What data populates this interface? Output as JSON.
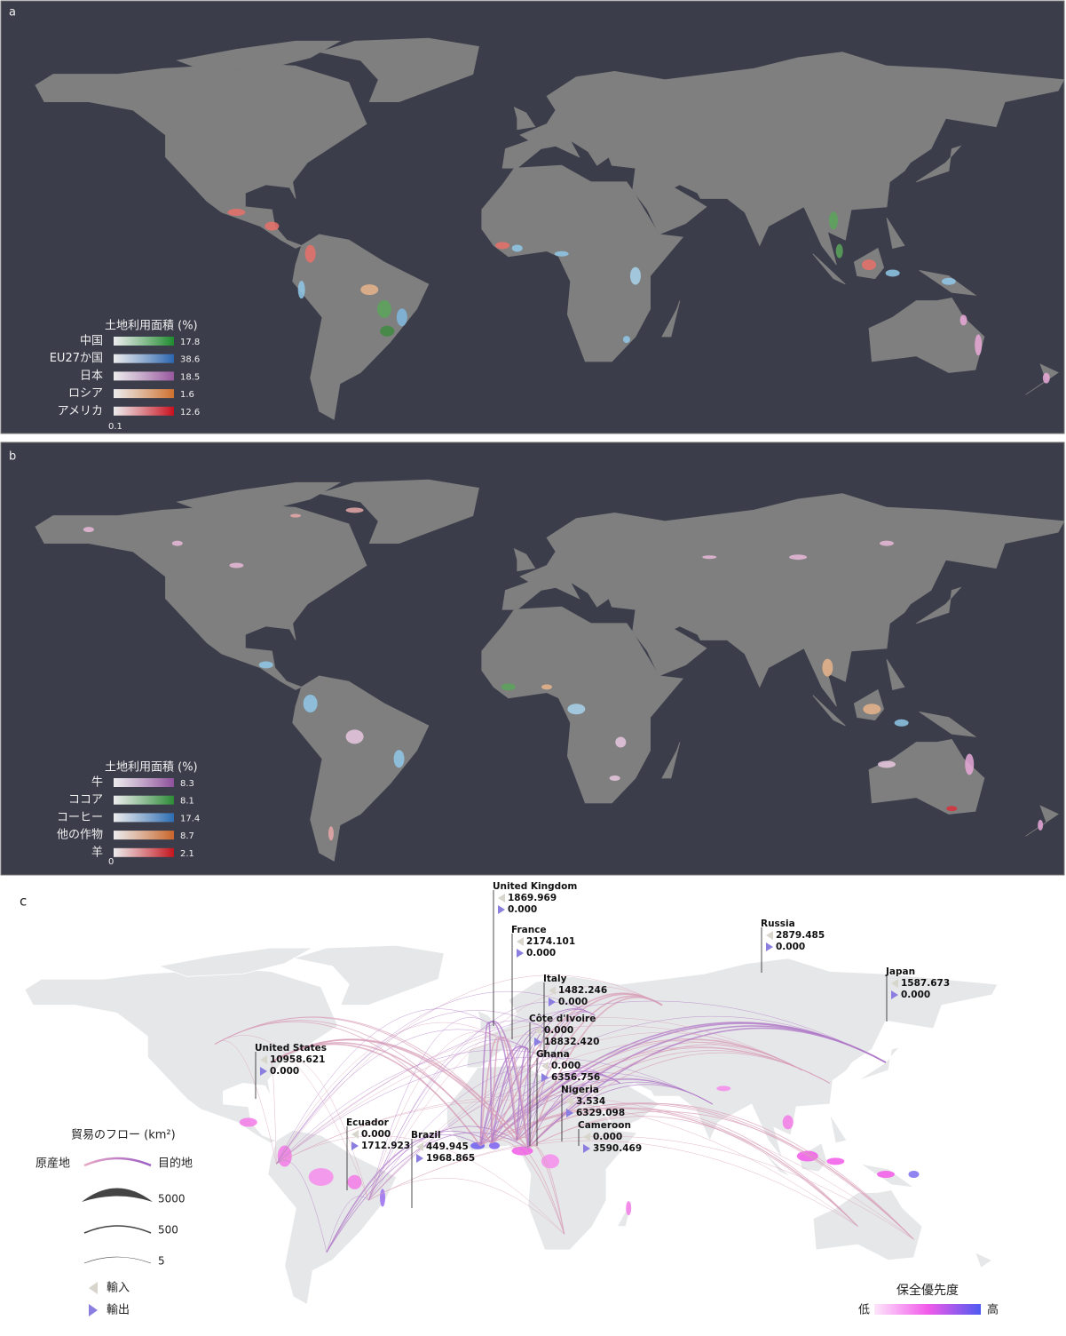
{
  "panel_a": {
    "label": "a",
    "legend": {
      "title": "土地利用面積 (%)",
      "min": 0.1,
      "items": [
        {
          "name": "中国",
          "max": 17.8,
          "color": "#1e8a2e"
        },
        {
          "name": "EU27か国",
          "max": 38.6,
          "color": "#2b66b0"
        },
        {
          "name": "日本",
          "max": 18.5,
          "color": "#98589e"
        },
        {
          "name": "ロシア",
          "max": 1.6,
          "color": "#d0702e"
        },
        {
          "name": "アメリカ",
          "max": 12.6,
          "color": "#c8101e"
        }
      ]
    }
  },
  "panel_b": {
    "label": "b",
    "legend": {
      "title": "土地利用面積 (%)",
      "min": 0,
      "items": [
        {
          "name": "牛",
          "max": 8.3,
          "color": "#8e4f9b"
        },
        {
          "name": "ココア",
          "max": 8.1,
          "color": "#2c8a36"
        },
        {
          "name": "コーヒー",
          "max": 17.4,
          "color": "#2c6cb3"
        },
        {
          "name": "他の作物",
          "max": 8.7,
          "color": "#c8652a"
        },
        {
          "name": "羊",
          "max": 2.1,
          "color": "#c5141d"
        }
      ]
    }
  },
  "panel_c": {
    "label": "c",
    "countries": [
      {
        "name": "United Kingdom",
        "import": "1869.969",
        "export": "0.000"
      },
      {
        "name": "France",
        "import": "2174.101",
        "export": "0.000"
      },
      {
        "name": "Italy",
        "import": "1482.246",
        "export": "0.000"
      },
      {
        "name": "Côte d'Ivoire",
        "import": "0.000",
        "export": "18832.420"
      },
      {
        "name": "Ghana",
        "import": "0.000",
        "export": "6356.756"
      },
      {
        "name": "Nigeria",
        "import": "3.534",
        "export": "6329.098"
      },
      {
        "name": "Cameroon",
        "import": "0.000",
        "export": "3590.469"
      },
      {
        "name": "Russia",
        "import": "2879.485",
        "export": "0.000"
      },
      {
        "name": "Japan",
        "import": "1587.673",
        "export": "0.000"
      },
      {
        "name": "United States",
        "import": "10958.621",
        "export": "0.000"
      },
      {
        "name": "Ecuador",
        "import": "0.000",
        "export": "1712.923"
      },
      {
        "name": "Brazil",
        "import": "449.945",
        "export": "1968.865"
      }
    ],
    "flow_legend": {
      "title": "貿易のフロー (km²)",
      "origin": "原産地",
      "destination": "目的地",
      "widths": [
        5000,
        500,
        5
      ],
      "import": "輸入",
      "export": "輸出"
    },
    "priority_legend": {
      "title": "保全優先度",
      "low": "低",
      "high": "高"
    }
  }
}
